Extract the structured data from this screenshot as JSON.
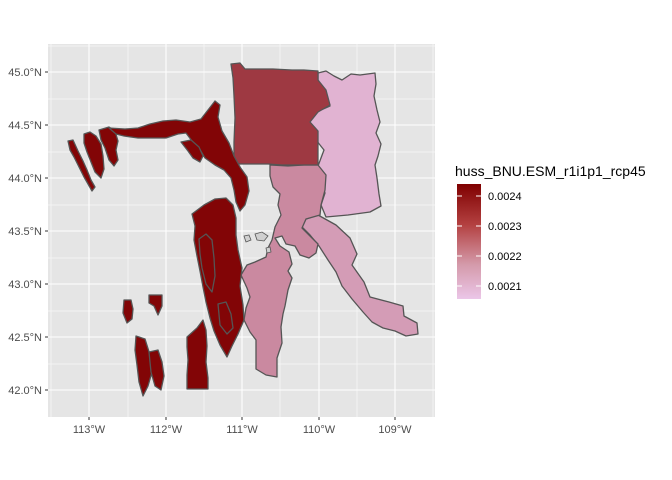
{
  "colors": {
    "panel_background": "#e5e5e5",
    "gridline": "#ffffff",
    "region_border": "#555555",
    "scale_low": "#ebc6e8",
    "scale_high": "#7f0000"
  },
  "map": {
    "x_ticks": [
      "113°W",
      "112°W",
      "111°W",
      "110°W",
      "109°W"
    ],
    "y_ticks": [
      "42.0°N",
      "42.5°N",
      "43.0°N",
      "43.5°N",
      "44.0°N",
      "44.5°N",
      "45.0°N"
    ],
    "regions": [
      {
        "id": "north-central-block",
        "value": 0.00235
      },
      {
        "id": "northeast-strip",
        "value": 0.00209
      },
      {
        "id": "southeast-diagonal",
        "value": 0.00214
      },
      {
        "id": "central-south-area",
        "value": 0.00218
      },
      {
        "id": "western-clusters",
        "value": 0.00246
      }
    ]
  },
  "legend": {
    "title": "huss_BNU.ESM_r1i1p1_rcp45",
    "labels": [
      "0.0024",
      "0.0023",
      "0.0022",
      "0.0021"
    ]
  }
}
